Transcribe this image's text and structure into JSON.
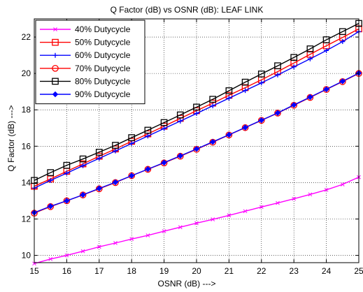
{
  "chart_data": {
    "type": "line",
    "title": "Q Factor (dB) vs OSNR (dB): LEAF LINK",
    "xlabel": "OSNR (dB) --->",
    "ylabel": "Q Factor (dB) --->",
    "xlim": [
      15,
      25
    ],
    "ylim": [
      9.6,
      23
    ],
    "xticks": [
      15,
      16,
      17,
      18,
      19,
      20,
      21,
      22,
      23,
      24,
      25
    ],
    "yticks": [
      10,
      12,
      14,
      16,
      18,
      20,
      22
    ],
    "grid": true,
    "legend_position": "top-left",
    "x": [
      15,
      15.5,
      16,
      16.5,
      17,
      17.5,
      18,
      18.5,
      19,
      19.5,
      20,
      20.5,
      21,
      21.5,
      22,
      22.5,
      23,
      23.5,
      24,
      24.5,
      25
    ],
    "series": [
      {
        "name": "40% Dutycycle",
        "color": "#ff00ff",
        "marker": "x",
        "values": [
          9.55,
          9.8,
          10.0,
          10.23,
          10.47,
          10.68,
          10.9,
          11.1,
          11.33,
          11.55,
          11.77,
          11.98,
          12.2,
          12.43,
          12.66,
          12.88,
          13.11,
          13.35,
          13.6,
          13.9,
          14.3
        ]
      },
      {
        "name": "50% Dutycycle",
        "color": "#ff0000",
        "marker": "square",
        "values": [
          13.8,
          14.2,
          14.62,
          15.03,
          15.45,
          15.85,
          16.27,
          16.68,
          17.1,
          17.53,
          17.95,
          18.37,
          18.8,
          19.22,
          19.65,
          20.1,
          20.57,
          21.05,
          21.52,
          21.98,
          22.45
        ]
      },
      {
        "name": "60% Dutycycle",
        "color": "#0000ff",
        "marker": "plus",
        "values": [
          13.7,
          14.12,
          14.52,
          14.93,
          15.33,
          15.74,
          16.15,
          16.56,
          16.97,
          17.38,
          17.8,
          18.22,
          18.64,
          19.06,
          19.48,
          19.92,
          20.36,
          20.8,
          21.26,
          21.75,
          22.3
        ]
      },
      {
        "name": "70% Dutycycle",
        "color": "#ff0000",
        "marker": "circle",
        "values": [
          12.32,
          12.68,
          13.0,
          13.32,
          13.66,
          14.0,
          14.38,
          14.73,
          15.08,
          15.45,
          15.83,
          16.22,
          16.62,
          17.02,
          17.42,
          17.82,
          18.25,
          18.68,
          19.12,
          19.55,
          20.0
        ]
      },
      {
        "name": "80% Dutycycle",
        "color": "#000000",
        "marker": "square",
        "values": [
          14.12,
          14.55,
          14.95,
          15.3,
          15.67,
          16.05,
          16.47,
          16.88,
          17.3,
          17.72,
          18.15,
          18.58,
          19.05,
          19.52,
          19.97,
          20.42,
          20.88,
          21.35,
          21.85,
          22.3,
          22.75
        ]
      },
      {
        "name": "90% Dutycycle",
        "color": "#0000ff",
        "marker": "diamond",
        "values": [
          12.35,
          12.7,
          13.0,
          13.33,
          13.68,
          14.02,
          14.38,
          14.74,
          15.1,
          15.47,
          15.85,
          16.24,
          16.63,
          17.03,
          17.43,
          17.83,
          18.27,
          18.7,
          19.13,
          19.57,
          20.02
        ]
      }
    ]
  }
}
